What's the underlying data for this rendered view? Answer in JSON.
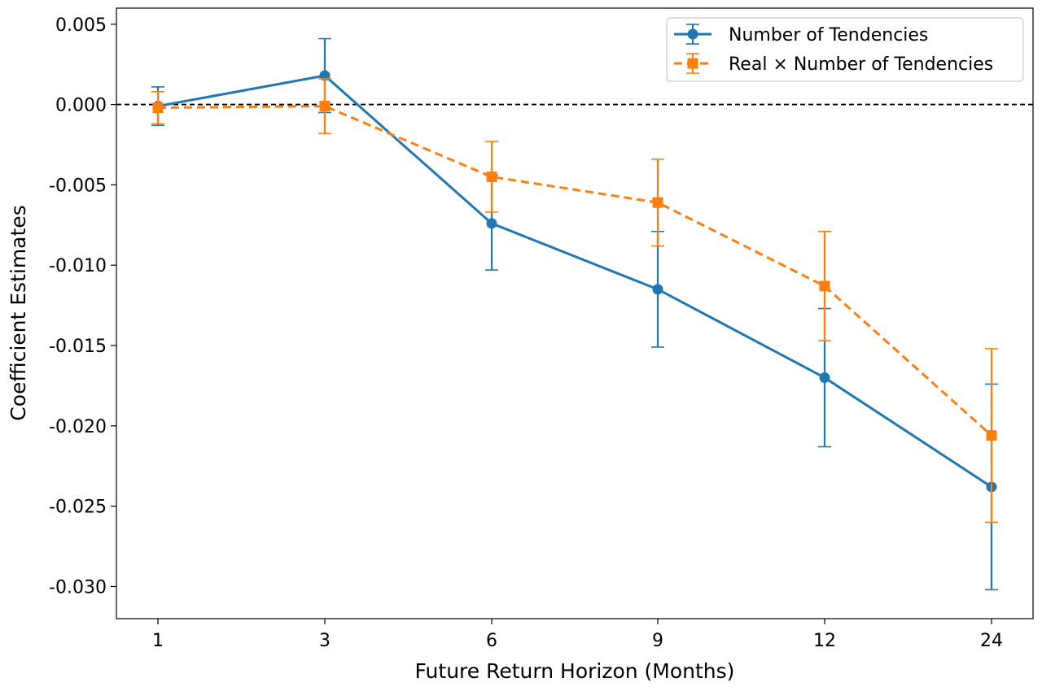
{
  "chart_data": {
    "type": "line",
    "title": "",
    "xlabel": "Future Return Horizon (Months)",
    "ylabel": "Coefficient Estimates",
    "categories": [
      "1",
      "3",
      "6",
      "9",
      "12",
      "24"
    ],
    "ylim": [
      -0.032,
      0.006
    ],
    "yticks": [
      0.005,
      0.0,
      -0.005,
      -0.01,
      -0.015,
      -0.02,
      -0.025,
      -0.03
    ],
    "ytick_labels": [
      "0.005",
      "0.000",
      "-0.005",
      "-0.010",
      "-0.015",
      "-0.020",
      "-0.025",
      "-0.030"
    ],
    "reference_line": {
      "y": 0.0,
      "style": "dashed",
      "color": "#000000"
    },
    "grid": false,
    "legend_position": "top-right",
    "series": [
      {
        "name": "Number of Tendencies",
        "color": "#1f77b4",
        "linestyle": "solid",
        "marker": "circle",
        "values": [
          -0.0001,
          0.0018,
          -0.0074,
          -0.0115,
          -0.017,
          -0.0238
        ],
        "err_low": [
          -0.0013,
          -0.0005,
          -0.0103,
          -0.0151,
          -0.0213,
          -0.0302
        ],
        "err_high": [
          0.0011,
          0.0041,
          -0.0044,
          -0.0079,
          -0.0127,
          -0.0174
        ]
      },
      {
        "name": "Real × Number of Tendencies",
        "color": "#ff7f0e",
        "linestyle": "dashed",
        "marker": "square",
        "values": [
          -0.0002,
          -0.0001,
          -0.0045,
          -0.0061,
          -0.0113,
          -0.0206
        ],
        "err_low": [
          -0.0012,
          -0.0018,
          -0.0067,
          -0.0088,
          -0.0147,
          -0.026
        ],
        "err_high": [
          0.0008,
          0.0016,
          -0.0023,
          -0.0034,
          -0.0079,
          -0.0152
        ]
      }
    ]
  }
}
